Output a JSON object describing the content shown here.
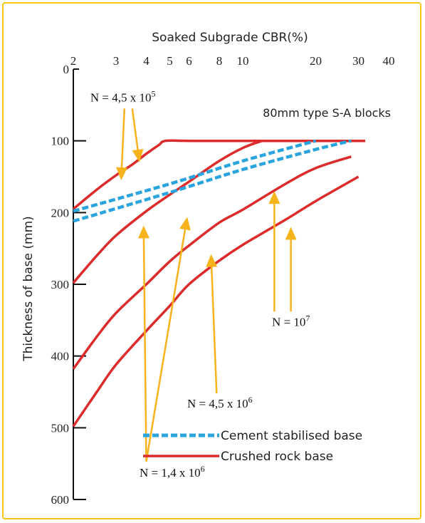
{
  "colors": {
    "frame": "#f5c518",
    "crushed_rock": "#dd2a2a",
    "cement": "#2aa4dc",
    "arrow": "#f7b31c",
    "axis": "#111111"
  },
  "chart_data": {
    "type": "line",
    "xlabel": "Soaked Subgrade CBR(%)",
    "ylabel": "Thickness of base (mm)",
    "xscale": "log",
    "xlim": [
      2,
      40
    ],
    "ylim": [
      0,
      600
    ],
    "y_inverted": true,
    "x_axis_position": "top",
    "x_ticks": [
      "2",
      "3",
      "4",
      "5",
      "6",
      "8",
      "10",
      "20",
      "30",
      "40"
    ],
    "x_tick_values": [
      2,
      3,
      4,
      5,
      6,
      8,
      10,
      20,
      30,
      40
    ],
    "y_ticks": [
      "0",
      "100",
      "200",
      "300",
      "400",
      "500",
      "600"
    ],
    "y_tick_values": [
      0,
      100,
      200,
      300,
      400,
      500,
      600
    ],
    "grid": false,
    "legend_position": "bottom-right",
    "note": "80mm type S-A blocks",
    "legend": [
      {
        "label": "Cement stabilised base",
        "style": "dashed",
        "color": "#2aa4dc"
      },
      {
        "label": "Crushed rock base",
        "style": "solid",
        "color": "#dd2a2a"
      }
    ],
    "series": [
      {
        "type": "crushed",
        "points": [
          [
            2,
            195
          ],
          [
            2.5,
            168
          ],
          [
            3,
            148
          ],
          [
            3.5,
            133
          ],
          [
            4,
            118
          ],
          [
            4.5,
            106
          ],
          [
            4.8,
            100
          ],
          [
            6,
            100
          ],
          [
            10,
            100
          ],
          [
            20,
            100
          ],
          [
            32,
            100
          ]
        ]
      },
      {
        "type": "crushed",
        "points": [
          [
            2,
            298
          ],
          [
            2.5,
            260
          ],
          [
            3,
            232
          ],
          [
            4,
            198
          ],
          [
            5,
            175
          ],
          [
            6,
            157
          ],
          [
            8,
            128
          ],
          [
            10,
            110
          ],
          [
            12,
            100
          ]
        ]
      },
      {
        "type": "crushed",
        "points": [
          [
            2,
            418
          ],
          [
            2.5,
            373
          ],
          [
            3,
            340
          ],
          [
            4,
            300
          ],
          [
            5,
            268
          ],
          [
            6,
            246
          ],
          [
            8,
            214
          ],
          [
            10,
            196
          ],
          [
            15,
            160
          ],
          [
            20,
            138
          ],
          [
            28,
            122
          ]
        ]
      },
      {
        "type": "crushed",
        "points": [
          [
            2,
            498
          ],
          [
            2.5,
            450
          ],
          [
            3,
            412
          ],
          [
            4,
            365
          ],
          [
            5,
            330
          ],
          [
            6,
            300
          ],
          [
            8,
            267
          ],
          [
            10,
            245
          ],
          [
            15,
            210
          ],
          [
            20,
            184
          ],
          [
            30,
            150
          ]
        ]
      },
      {
        "type": "cement",
        "points": [
          [
            2,
            198
          ],
          [
            5,
            160
          ],
          [
            10,
            128
          ],
          [
            20,
            100
          ]
        ]
      },
      {
        "type": "cement",
        "points": [
          [
            2,
            212
          ],
          [
            5,
            172
          ],
          [
            10,
            140
          ],
          [
            20,
            112
          ],
          [
            28,
            100
          ]
        ]
      }
    ],
    "annotations": [
      {
        "id": "n1",
        "parts": [
          {
            "text": "N = 4,5 x 10"
          },
          {
            "text": "5",
            "sup": true
          }
        ],
        "at": [
          2.35,
          45
        ],
        "arrows": [
          [
            3.25,
            55,
            3.15,
            155
          ],
          [
            3.5,
            55,
            3.75,
            130
          ]
        ]
      },
      {
        "id": "n2",
        "parts": [
          {
            "text": "N = 10"
          },
          {
            "text": "7",
            "sup": true
          }
        ],
        "at": [
          13.2,
          358
        ],
        "arrows": [
          [
            13.5,
            338,
            13.5,
            170
          ],
          [
            15.8,
            338,
            15.8,
            220
          ]
        ]
      },
      {
        "id": "n3",
        "parts": [
          {
            "text": "N = 4,5 x 10"
          },
          {
            "text": "6",
            "sup": true
          }
        ],
        "at": [
          5.9,
          472
        ],
        "arrows": [
          [
            7.8,
            452,
            7.4,
            258
          ]
        ]
      },
      {
        "id": "n4",
        "parts": [
          {
            "text": "N = 1,4 x 10"
          },
          {
            "text": "6",
            "sup": true
          }
        ],
        "at": [
          3.75,
          568
        ],
        "arrows": [
          [
            4.0,
            547,
            3.9,
            218
          ],
          [
            4.0,
            547,
            5.9,
            206
          ]
        ]
      }
    ]
  }
}
